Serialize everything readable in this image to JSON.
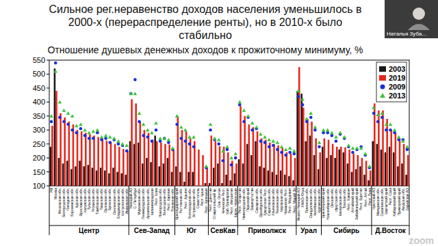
{
  "chart_data": {
    "type": "bar",
    "title": "Сильное рег.неравенство доходов населения уменьшилось в 2000-х (перераспределение ренты), но в 2010-х было стабильно",
    "subtitle": "Отношение душевых денежных доходов к прожиточному минимуму, %",
    "categories": [
      "РФ",
      "Москва",
      "Московская обл.",
      "Белгородская обл.",
      "Липецкая обл.",
      "Воронежская обл.",
      "Курская обл.",
      "Ярославская обл.",
      "Калужская обл.",
      "Тульская обл.",
      "Рязанская обл.",
      "Тамбовская обл.",
      "Тверская обл.",
      "Орловская обл.",
      "Брянская обл.",
      "Смоленская обл.",
      "Владимирская обл.",
      "Костромская обл.",
      "Ивановская обл.",
      "Ненецкий АО",
      "С.-Петербург",
      "Мурманская обл.",
      "Ленинградская обл.",
      "Архангельская обл.",
      "Калининградская",
      "Респ. Коми",
      "Новгородская обл.",
      "Вологодская обл.",
      "Респ. Карелия",
      "Псковская обл.",
      "Краснодарский край",
      "Ростовская обл.",
      "Респ. Адыгея",
      "Волгоградская обл.",
      "Астраханская обл.",
      "Севастополь",
      "Респ. Крым",
      "Респ. Калмыкия",
      "Респ. Дагестан",
      "Ставропольский кр.",
      "Сев. Осетия",
      "Чеченская Респ.",
      "Каб.-Балкарская",
      "Респ. Ингушетия",
      "Карач.-Черкесская",
      "Респ. Татарстан",
      "Нижегородская обл.",
      "Пермский край",
      "Башкортостан",
      "Самарская обл.",
      "Оренбургская обл.",
      "Удмуртская Респ.",
      "Саратовская обл.",
      "Ульяновская обл.",
      "Пензенская обл.",
      "Кировская обл.",
      "Чувашская Респ.",
      "Респ. Мордовия",
      "Респ. Марий Эл",
      "Ямало-Ненецкий АО",
      "ХМАО-Югра",
      "Тюменская обл.",
      "Свердловская обл.",
      "Челябинская обл.",
      "Курганская обл.",
      "Красноярский край",
      "Новосибирская обл.",
      "Омская обл.",
      "Иркутская обл.",
      "Кемеровская обл.",
      "Томская обл.",
      "Респ. Хакасия",
      "Алтайский край",
      "Забайкальский край",
      "Респ. Бурятия",
      "Респ. Алтай",
      "Респ. Тыва",
      "Чукотский АО",
      "Магаданская обл.",
      "Сахалинская обл.",
      "Камчатский край",
      "Респ. Саха",
      "Хабаровский край",
      "Приморский край",
      "Амурская обл.",
      "Еврейская АО"
    ],
    "groups": [
      {
        "name": "Центр",
        "count": 19
      },
      {
        "name": "Сев-Запад",
        "count": 11
      },
      {
        "name": "Юг",
        "count": 8
      },
      {
        "name": "СевКав",
        "count": 7
      },
      {
        "name": "Приволжск",
        "count": 14
      },
      {
        "name": "Урал",
        "count": 6
      },
      {
        "name": "Сибирь",
        "count": 12
      },
      {
        "name": "Д.Восток",
        "count": 9
      }
    ],
    "series": [
      {
        "name": "2003",
        "type": "bar",
        "color": "#1a1a1a",
        "values": [
          240,
          520,
          200,
          180,
          190,
          160,
          170,
          190,
          170,
          175,
          165,
          155,
          165,
          155,
          145,
          165,
          150,
          145,
          140,
          260,
          250,
          255,
          180,
          200,
          185,
          280,
          170,
          180,
          200,
          150,
          170,
          150,
          115,
          150,
          150,
          null,
          null,
          110,
          110,
          165,
          180,
          110,
          140,
          120,
          145,
          195,
          180,
          250,
          210,
          260,
          170,
          165,
          155,
          150,
          140,
          155,
          140,
          135,
          120,
          440,
          430,
          260,
          280,
          210,
          160,
          240,
          200,
          210,
          200,
          230,
          220,
          180,
          150,
          160,
          170,
          140,
          120,
          260,
          250,
          230,
          220,
          240,
          220,
          170,
          180,
          140
        ]
      },
      {
        "name": "2019",
        "type": "bar",
        "color": "#e8251b",
        "values": [
          315,
          440,
          360,
          345,
          330,
          320,
          300,
          295,
          290,
          285,
          280,
          275,
          270,
          262,
          258,
          250,
          240,
          232,
          225,
          410,
          395,
          330,
          300,
          290,
          265,
          260,
          255,
          250,
          248,
          230,
          350,
          300,
          295,
          270,
          260,
          230,
          210,
          165,
          280,
          260,
          242,
          240,
          220,
          190,
          180,
          385,
          350,
          320,
          310,
          295,
          270,
          265,
          255,
          250,
          245,
          235,
          220,
          215,
          200,
          525,
          380,
          340,
          330,
          270,
          220,
          270,
          265,
          250,
          240,
          240,
          238,
          230,
          215,
          210,
          200,
          190,
          155,
          395,
          370,
          370,
          340,
          300,
          290,
          270,
          250,
          210
        ]
      },
      {
        "name": "2009",
        "type": "scatter",
        "marker": "circle",
        "color": "#1a2fd6",
        "values": [
          330,
          540,
          345,
          330,
          320,
          300,
          290,
          305,
          280,
          270,
          270,
          290,
          265,
          270,
          255,
          265,
          250,
          245,
          225,
          430,
          480,
          330,
          280,
          275,
          260,
          300,
          260,
          270,
          255,
          230,
          320,
          270,
          260,
          250,
          240,
          null,
          null,
          165,
          300,
          265,
          250,
          190,
          230,
          175,
          200,
          390,
          330,
          345,
          300,
          305,
          260,
          255,
          240,
          245,
          230,
          220,
          210,
          220,
          215,
          420,
          390,
          330,
          345,
          300,
          240,
          290,
          290,
          280,
          260,
          285,
          270,
          240,
          220,
          230,
          240,
          210,
          165,
          360,
          330,
          345,
          300,
          300,
          290,
          265,
          265,
          230
        ]
      },
      {
        "name": "2013",
        "type": "scatter",
        "marker": "triangle",
        "color": "#3cc43c",
        "values": [
          350,
          510,
          400,
          370,
          360,
          350,
          315,
          320,
          300,
          290,
          295,
          300,
          275,
          280,
          275,
          270,
          260,
          250,
          245,
          430,
          430,
          360,
          320,
          300,
          290,
          325,
          270,
          270,
          265,
          235,
          350,
          310,
          300,
          275,
          275,
          null,
          null,
          170,
          320,
          270,
          265,
          225,
          240,
          200,
          215,
          400,
          370,
          350,
          325,
          310,
          285,
          275,
          265,
          260,
          255,
          240,
          230,
          235,
          225,
          440,
          410,
          340,
          360,
          310,
          255,
          300,
          300,
          290,
          275,
          290,
          275,
          245,
          235,
          235,
          235,
          215,
          170,
          380,
          355,
          360,
          320,
          320,
          300,
          275,
          260,
          240
        ]
      }
    ],
    "ylim": [
      100,
      550
    ],
    "yticks": [
      100,
      150,
      200,
      250,
      300,
      350,
      400,
      450,
      500,
      550
    ],
    "grid": false,
    "legend": "top-right"
  },
  "overlay": {
    "presenter": "Наталья Зуба...",
    "app": "zoom"
  }
}
